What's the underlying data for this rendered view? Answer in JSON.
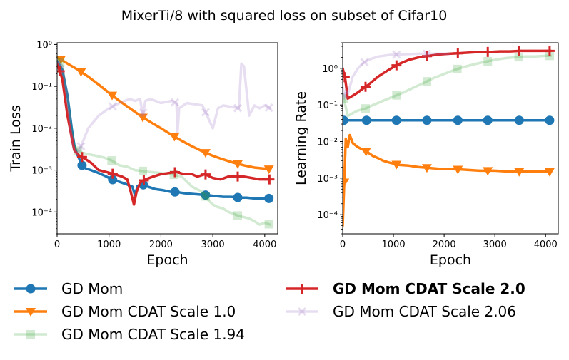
{
  "title": "MixerTi/8 with squared loss on subset of Cifar10",
  "chart_data": [
    {
      "type": "line",
      "title": "",
      "xlabel": "Epoch",
      "ylabel": "Train Loss",
      "yscale": "log",
      "xlim": [
        0,
        4250
      ],
      "ylim": [
        3e-05,
        1.1
      ],
      "xticks": [
        0,
        1000,
        2000,
        3000,
        4000
      ],
      "xtick_labels": [
        "0",
        "1000",
        "2000",
        "3000",
        "4000"
      ],
      "yticks": [
        1,
        0.1,
        0.01,
        0.001,
        0.0001
      ],
      "ytick_labels": [
        "10⁰",
        "10⁻¹",
        "10⁻²",
        "10⁻³",
        "10⁻⁴"
      ],
      "series": [
        {
          "name": "GD Mom",
          "color": "#1f77b4",
          "marker": "circle",
          "alpha": 1,
          "x": [
            0,
            100,
            200,
            280,
            330,
            380,
            430,
            480,
            550,
            650,
            750,
            850,
            950,
            1050,
            1150,
            1250,
            1350,
            1450,
            1500,
            1550,
            1650,
            1750,
            1900,
            2050,
            2200,
            2300,
            2450,
            2600,
            2750,
            2900,
            3050,
            3200,
            3350,
            3500,
            3650,
            3800,
            3950,
            4100
          ],
          "y": [
            0.4,
            0.25,
            0.06,
            0.01,
            0.004,
            0.0025,
            0.0018,
            0.0013,
            0.0011,
            0.001,
            0.0009,
            0.0008,
            0.0007,
            0.0006,
            0.00055,
            0.0005,
            0.00045,
            0.0004,
            0.00025,
            0.00042,
            0.00045,
            0.0004,
            0.00035,
            0.00033,
            0.0003,
            0.0003,
            0.00028,
            0.00027,
            0.00026,
            0.00025,
            0.00024,
            0.00023,
            0.00023,
            0.00022,
            0.00022,
            0.00021,
            0.00021,
            0.00021
          ],
          "markers_x": [
            480,
            1070,
            1660,
            2270,
            2860,
            3480,
            4080
          ]
        },
        {
          "name": "GD Mom CDAT Scale 1.0",
          "color": "#ff7f0e",
          "marker": "triangle-down",
          "alpha": 1,
          "x": [
            0,
            200,
            400,
            600,
            800,
            1000,
            1200,
            1400,
            1600,
            1800,
            2000,
            2200,
            2400,
            2600,
            2800,
            3000,
            3200,
            3400,
            3600,
            3800,
            4100
          ],
          "y": [
            0.5,
            0.35,
            0.25,
            0.17,
            0.11,
            0.07,
            0.045,
            0.03,
            0.02,
            0.014,
            0.01,
            0.007,
            0.005,
            0.0037,
            0.0028,
            0.0022,
            0.0018,
            0.0015,
            0.0013,
            0.00115,
            0.00105
          ],
          "markers_x": [
            70,
            460,
            1060,
            1650,
            2260,
            2860,
            3480,
            4080
          ]
        },
        {
          "name": "GD Mom CDAT Scale 1.94",
          "color": "#2ca02c",
          "marker": "square",
          "alpha": 0.22,
          "x": [
            0,
            100,
            200,
            280,
            330,
            380,
            430,
            480,
            600,
            750,
            900,
            1050,
            1200,
            1350,
            1500,
            1650,
            1800,
            2000,
            2200,
            2400,
            2600,
            2800,
            2900,
            3000,
            3100,
            3200,
            3300,
            3400,
            3500,
            3600,
            3700,
            3800,
            3900,
            4000,
            4100
          ],
          "y": [
            0.5,
            0.3,
            0.05,
            0.008,
            0.004,
            0.003,
            0.0028,
            0.0026,
            0.0024,
            0.0022,
            0.002,
            0.0017,
            0.0013,
            0.0012,
            0.001,
            0.00095,
            0.0009,
            0.00085,
            0.0008,
            0.0007,
            0.0004,
            0.0003,
            0.0002,
            0.00015,
            0.00013,
            0.00012,
            0.0001,
            9e-05,
            8e-05,
            7.5e-05,
            7e-05,
            6e-05,
            5e-05,
            5.5e-05,
            5e-05
          ],
          "markers_x": [
            60,
            400,
            1050,
            1650,
            2250,
            2860,
            3480,
            4080
          ]
        },
        {
          "name": "GD Mom CDAT Scale 2.0",
          "color": "#d62728",
          "marker": "plus",
          "alpha": 1,
          "x": [
            0,
            100,
            200,
            280,
            330,
            380,
            430,
            500,
            650,
            800,
            950,
            1100,
            1250,
            1350,
            1420,
            1480,
            1530,
            1600,
            1700,
            1850,
            2000,
            2150,
            2300,
            2450,
            2600,
            2700,
            2850,
            3000,
            3150,
            3300,
            3450,
            3600,
            3750,
            3900,
            4100
          ],
          "y": [
            0.35,
            0.15,
            0.02,
            0.006,
            0.003,
            0.0025,
            0.0022,
            0.002,
            0.0015,
            0.001,
            0.0009,
            0.0008,
            0.0007,
            0.0006,
            0.0003,
            0.00015,
            0.0003,
            0.0005,
            0.0006,
            0.0007,
            0.0008,
            0.00085,
            0.0009,
            0.0008,
            0.0008,
            0.0007,
            0.0008,
            0.00065,
            0.0006,
            0.0007,
            0.0007,
            0.0007,
            0.00065,
            0.0006,
            0.0006
          ],
          "markers_x": [
            50,
            480,
            1070,
            1670,
            2270,
            2860,
            3480,
            4090
          ]
        },
        {
          "name": "GD Mom CDAT Scale 2.06",
          "color": "#9467bd",
          "marker": "x",
          "alpha": 0.22,
          "x": [
            0,
            100,
            200,
            280,
            330,
            380,
            430,
            600,
            800,
            1000,
            1200,
            1400,
            1500,
            1600,
            1650,
            1700,
            1800,
            2000,
            2200,
            2300,
            2320,
            2350,
            2500,
            2800,
            3000,
            3100,
            3200,
            3500,
            3550,
            3600,
            3700,
            3800,
            3900,
            4000,
            4100
          ],
          "y": [
            0.4,
            0.3,
            0.05,
            0.005,
            0.003,
            0.0025,
            0.003,
            0.01,
            0.02,
            0.03,
            0.04,
            0.05,
            0.045,
            0.05,
            0.02,
            0.045,
            0.05,
            0.04,
            0.045,
            0.04,
            0.008,
            0.03,
            0.04,
            0.035,
            0.01,
            0.03,
            0.035,
            0.03,
            0.35,
            0.3,
            0.02,
            0.035,
            0.03,
            0.035,
            0.03
          ],
          "markers_x": [
            30,
            460,
            1070,
            1660,
            2270,
            2860,
            3480,
            4080
          ]
        }
      ]
    },
    {
      "type": "line",
      "title": "",
      "xlabel": "Epoch",
      "ylabel": "Learning Rate",
      "yscale": "log",
      "xlim": [
        0,
        4250
      ],
      "ylim": [
        3e-05,
        5
      ],
      "xticks": [
        0,
        1000,
        2000,
        3000,
        4000
      ],
      "xtick_labels": [
        "0",
        "1000",
        "2000",
        "3000",
        "4000"
      ],
      "yticks": [
        1,
        0.1,
        0.01,
        0.001,
        0.0001
      ],
      "ytick_labels": [
        "10⁰",
        "10⁻¹",
        "10⁻²",
        "10⁻³",
        "10⁻⁴"
      ],
      "series": [
        {
          "name": "GD Mom",
          "color": "#1f77b4",
          "marker": "circle",
          "alpha": 1,
          "x": [
            0,
            4100
          ],
          "y": [
            0.038,
            0.038
          ],
          "markers_x": [
            20,
            470,
            1060,
            1660,
            2270,
            2860,
            3480,
            4080
          ]
        },
        {
          "name": "GD Mom CDAT Scale 1.0",
          "color": "#ff7f0e",
          "marker": "triangle-down",
          "alpha": 1,
          "x": [
            0,
            60,
            100,
            140,
            200,
            300,
            400,
            500,
            600,
            700,
            800,
            900,
            1000,
            1100,
            1300,
            1500,
            1700,
            1900,
            2100,
            2400,
            2700,
            3000,
            3300,
            3600,
            3900,
            4100
          ],
          "y": [
            5e-05,
            0.012,
            0.007,
            0.015,
            0.009,
            0.007,
            0.006,
            0.005,
            0.004,
            0.0035,
            0.003,
            0.0027,
            0.0025,
            0.0023,
            0.0022,
            0.002,
            0.0019,
            0.0018,
            0.0018,
            0.0017,
            0.0016,
            0.0016,
            0.0015,
            0.0015,
            0.0015,
            0.0015
          ],
          "markers_x": [
            30,
            460,
            1060,
            1660,
            2270,
            2860,
            3480,
            4080
          ]
        },
        {
          "name": "GD Mom CDAT Scale 1.94",
          "color": "#2ca02c",
          "marker": "square",
          "alpha": 0.22,
          "x": [
            0,
            100,
            200,
            300,
            450,
            600,
            800,
            1000,
            1200,
            1400,
            1600,
            1800,
            2000,
            2200,
            2400,
            2600,
            2800,
            3000,
            3200,
            3400,
            3600,
            3800,
            4000,
            4100
          ],
          "y": [
            0.2,
            0.05,
            0.06,
            0.07,
            0.08,
            0.1,
            0.13,
            0.17,
            0.22,
            0.3,
            0.4,
            0.55,
            0.7,
            0.9,
            1.1,
            1.3,
            1.5,
            1.7,
            1.9,
            2.0,
            2.1,
            2.1,
            2.2,
            2.2
          ],
          "markers_x": [
            20,
            450,
            1060,
            1660,
            2260,
            2860,
            3470,
            4080
          ]
        },
        {
          "name": "GD Mom CDAT Scale 2.0",
          "color": "#d62728",
          "marker": "plus",
          "alpha": 1,
          "x": [
            0,
            50,
            100,
            200,
            300,
            400,
            500,
            700,
            900,
            1100,
            1300,
            1500,
            1700,
            1900,
            2100,
            2300,
            2500,
            2700,
            2900,
            3100,
            3300,
            3500,
            3700,
            3900,
            4100
          ],
          "y": [
            1.0,
            0.5,
            0.15,
            0.18,
            0.22,
            0.28,
            0.35,
            0.6,
            0.9,
            1.3,
            1.7,
            2.0,
            2.2,
            2.4,
            2.5,
            2.6,
            2.7,
            2.8,
            2.8,
            2.9,
            2.9,
            3.0,
            3.0,
            3.0,
            3.0
          ],
          "markers_x": [
            40,
            450,
            1060,
            1660,
            2270,
            2860,
            3480,
            4080
          ]
        },
        {
          "name": "GD Mom CDAT Scale 2.06",
          "color": "#9467bd",
          "marker": "x",
          "alpha": 0.22,
          "x": [
            0,
            30,
            60,
            100,
            150,
            200,
            300,
            400,
            550,
            700,
            900,
            1100,
            1300,
            1500,
            1800,
            2100
          ],
          "y": [
            0.3,
            0.15,
            0.25,
            0.2,
            0.35,
            0.6,
            1.0,
            1.4,
            1.8,
            2.1,
            2.3,
            2.4,
            2.45,
            2.5,
            2.5,
            2.5
          ],
          "markers_x": [
            20,
            430,
            1060,
            1660
          ]
        }
      ]
    }
  ],
  "legend": [
    {
      "label": "GD Mom",
      "color": "#1f77b4",
      "marker": "circle",
      "alpha": 1,
      "bold": false
    },
    {
      "label": "GD Mom CDAT Scale 1.0",
      "color": "#ff7f0e",
      "marker": "triangle-down",
      "alpha": 1,
      "bold": false
    },
    {
      "label": "GD Mom CDAT Scale 1.94",
      "color": "#2ca02c",
      "marker": "square",
      "alpha": 0.22,
      "bold": false
    },
    {
      "label": "GD Mom CDAT Scale 2.0",
      "color": "#d62728",
      "marker": "plus",
      "alpha": 1,
      "bold": true
    },
    {
      "label": "GD Mom CDAT Scale 2.06",
      "color": "#9467bd",
      "marker": "x",
      "alpha": 0.22,
      "bold": false
    }
  ]
}
